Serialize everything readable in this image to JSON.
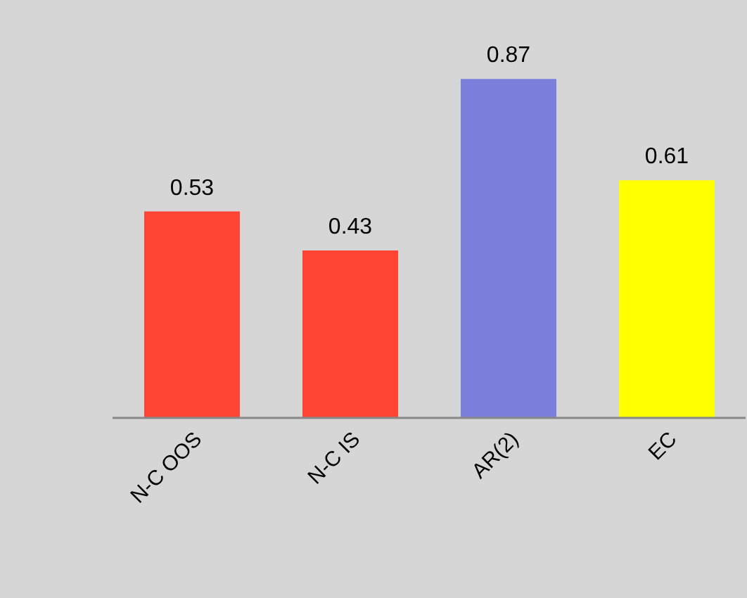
{
  "chart_data": {
    "type": "bar",
    "categories": [
      "N-C OOS",
      "N-C IS",
      "AR(2)",
      "EC"
    ],
    "values": [
      0.53,
      0.43,
      0.87,
      0.61
    ],
    "colors": [
      "#ff4433",
      "#ff4433",
      "#7b7fdb",
      "#ffff00"
    ],
    "data_labels": true,
    "grid": false,
    "legend": false
  }
}
